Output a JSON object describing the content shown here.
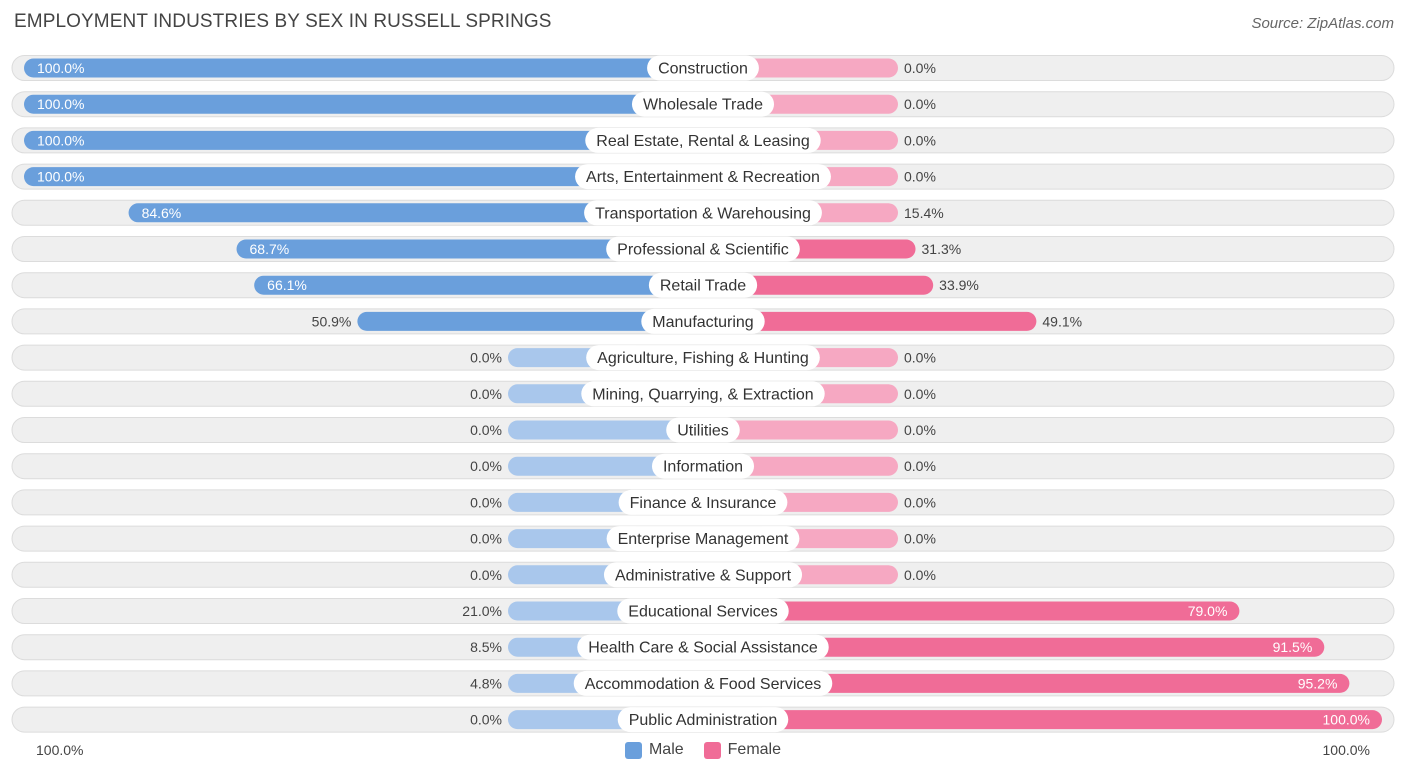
{
  "header": {
    "title": "EMPLOYMENT INDUSTRIES BY SEX IN RUSSELL SPRINGS",
    "source": "Source: ZipAtlas.com"
  },
  "colors": {
    "male": "#6a9fdc",
    "male_light": "#a9c7ec",
    "female": "#f06c97",
    "female_light": "#f6a8c2",
    "row_bg": "#efefef"
  },
  "chart_data": {
    "type": "bar",
    "title": "EMPLOYMENT INDUSTRIES BY SEX IN RUSSELL SPRINGS",
    "orientation": "horizontal-diverging",
    "categories": [
      "Construction",
      "Wholesale Trade",
      "Real Estate, Rental & Leasing",
      "Arts, Entertainment & Recreation",
      "Transportation & Warehousing",
      "Professional & Scientific",
      "Retail Trade",
      "Manufacturing",
      "Agriculture, Fishing & Hunting",
      "Mining, Quarrying, & Extraction",
      "Utilities",
      "Information",
      "Finance & Insurance",
      "Enterprise Management",
      "Administrative & Support",
      "Educational Services",
      "Health Care & Social Assistance",
      "Accommodation & Food Services",
      "Public Administration"
    ],
    "series": [
      {
        "name": "Male",
        "values": [
          100.0,
          100.0,
          100.0,
          100.0,
          84.6,
          68.7,
          66.1,
          50.9,
          0.0,
          0.0,
          0.0,
          0.0,
          0.0,
          0.0,
          0.0,
          21.0,
          8.5,
          4.8,
          0.0
        ],
        "labels": [
          "100.0%",
          "100.0%",
          "100.0%",
          "100.0%",
          "84.6%",
          "68.7%",
          "66.1%",
          "50.9%",
          "0.0%",
          "0.0%",
          "0.0%",
          "0.0%",
          "0.0%",
          "0.0%",
          "0.0%",
          "21.0%",
          "8.5%",
          "4.8%",
          "0.0%"
        ]
      },
      {
        "name": "Female",
        "values": [
          0.0,
          0.0,
          0.0,
          0.0,
          15.4,
          31.3,
          33.9,
          49.1,
          0.0,
          0.0,
          0.0,
          0.0,
          0.0,
          0.0,
          0.0,
          79.0,
          91.5,
          95.2,
          100.0
        ],
        "labels": [
          "0.0%",
          "0.0%",
          "0.0%",
          "0.0%",
          "15.4%",
          "31.3%",
          "33.9%",
          "49.1%",
          "0.0%",
          "0.0%",
          "0.0%",
          "0.0%",
          "0.0%",
          "0.0%",
          "0.0%",
          "79.0%",
          "91.5%",
          "95.2%",
          "100.0%"
        ]
      }
    ],
    "xlim": [
      0,
      100
    ],
    "axis_labels": {
      "left": "100.0%",
      "right": "100.0%"
    },
    "legend": {
      "position": "bottom-center",
      "entries": [
        "Male",
        "Female"
      ]
    }
  }
}
